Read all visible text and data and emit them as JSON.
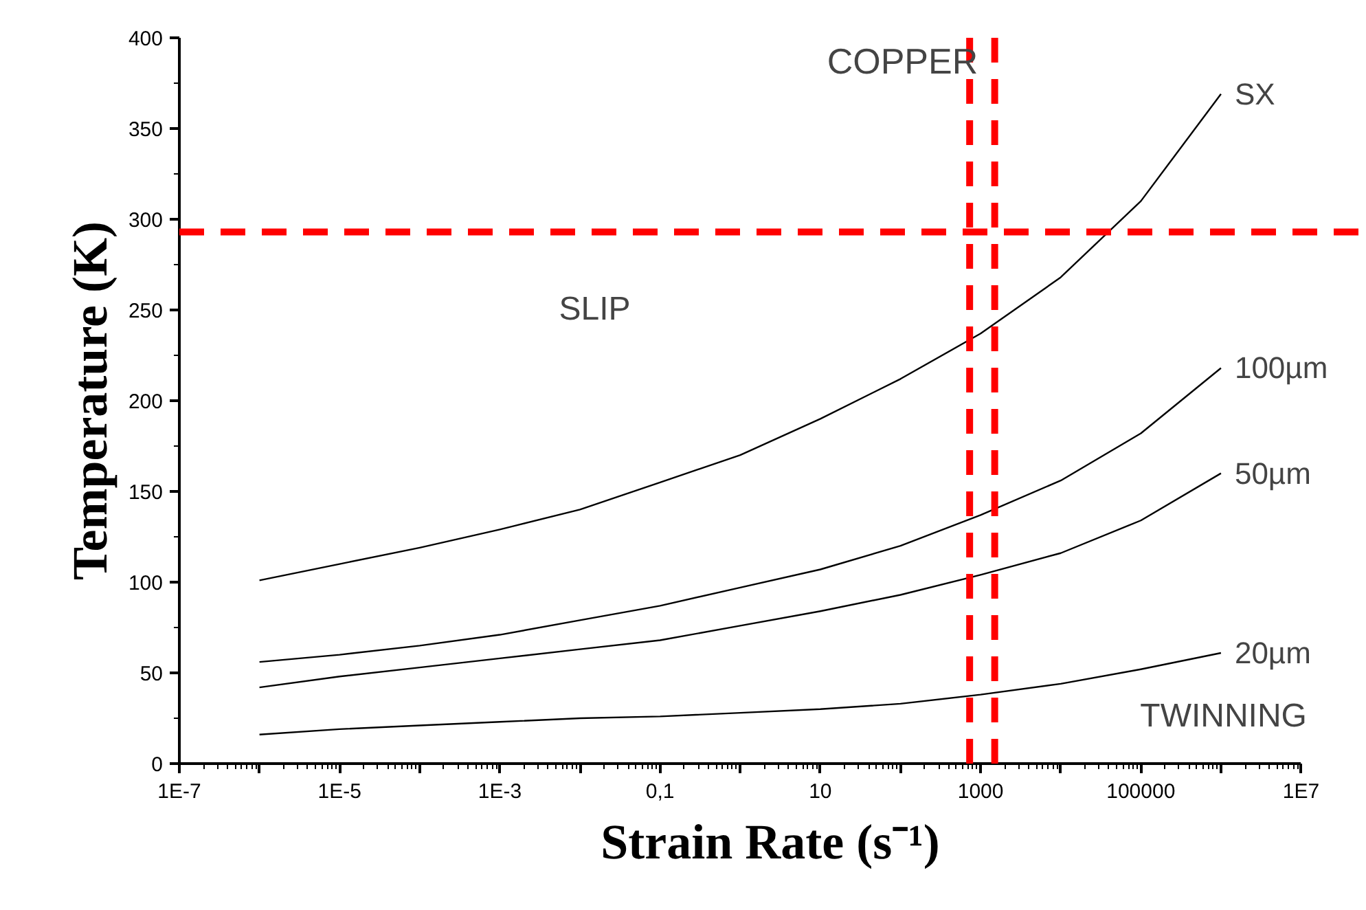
{
  "chart_data": {
    "type": "line",
    "title": "COPPER",
    "xlabel": "Strain Rate (s⁻¹)",
    "ylabel": "Temperature (K)",
    "log": "x",
    "grid": false,
    "legend": false,
    "line_style": "solid",
    "marker": "none",
    "x": [
      1e-06,
      1e-05,
      0.0001,
      0.001,
      0.01,
      0.1,
      1,
      10,
      100,
      1000,
      10000,
      100000,
      1000000
    ],
    "series": [
      {
        "name": "SX",
        "color": "#000000",
        "values": [
          101,
          110,
          119,
          129,
          140,
          155,
          170,
          190,
          212,
          237,
          268,
          310,
          369
        ]
      },
      {
        "name": "100µm",
        "color": "#000000",
        "values": [
          56,
          60,
          65,
          71,
          79,
          87,
          97,
          107,
          120,
          137,
          156,
          182,
          218
        ]
      },
      {
        "name": "50µm",
        "color": "#000000",
        "values": [
          42,
          48,
          53,
          58,
          63,
          68,
          76,
          84,
          93,
          104,
          116,
          134,
          160
        ]
      },
      {
        "name": "20µm",
        "color": "#000000",
        "values": [
          16,
          19,
          21,
          23,
          25,
          26,
          28,
          30,
          33,
          38,
          44,
          52,
          61
        ]
      }
    ],
    "xlim": [
      1e-07,
      10000000.0
    ],
    "xticks": [
      {
        "value": 1e-07,
        "label": "1E-7"
      },
      {
        "value": 1e-06,
        "label": null
      },
      {
        "value": 1e-05,
        "label": "1E-5"
      },
      {
        "value": 0.0001,
        "label": null
      },
      {
        "value": 0.001,
        "label": "1E-3"
      },
      {
        "value": 0.01,
        "label": null
      },
      {
        "value": 0.1,
        "label": "0,1"
      },
      {
        "value": 1,
        "label": null
      },
      {
        "value": 10,
        "label": "10"
      },
      {
        "value": 100,
        "label": null
      },
      {
        "value": 1000,
        "label": "1000"
      },
      {
        "value": 10000,
        "label": null
      },
      {
        "value": 100000,
        "label": "100000"
      },
      {
        "value": 1000000,
        "label": null
      },
      {
        "value": 10000000.0,
        "label": "1E7"
      }
    ],
    "ylim": [
      0,
      400
    ],
    "yticks": [
      0,
      50,
      100,
      150,
      200,
      250,
      300,
      350,
      400
    ],
    "ref_lines": [
      {
        "axis": "y",
        "value": 293,
        "color": "#ff0000",
        "line_style": "dashed"
      },
      {
        "axis": "x",
        "value": 730,
        "color": "#ff0000",
        "line_style": "dashed"
      },
      {
        "axis": "x",
        "value": 1500,
        "color": "#ff0000",
        "line_style": "dashed"
      }
    ],
    "annotations": [
      "SLIP",
      "TWINNING"
    ]
  }
}
